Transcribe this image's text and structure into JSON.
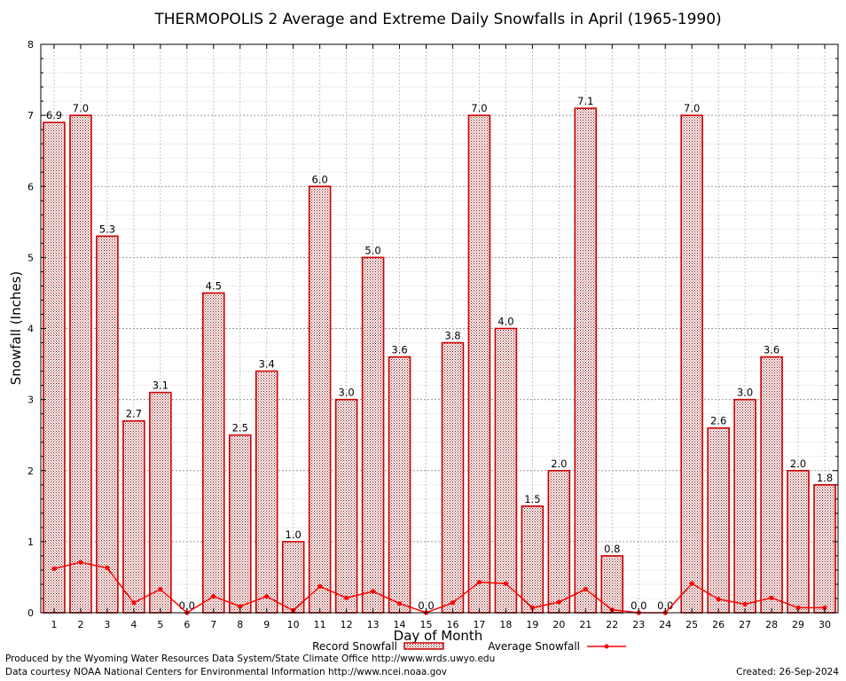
{
  "chart_data": {
    "type": "bar",
    "title": "THERMOPOLIS 2 Average and Extreme Daily Snowfalls in April (1965-1990)",
    "xlabel": "Day of Month",
    "ylabel": "Snowfall (Inches)",
    "ylim": [
      0,
      8
    ],
    "yticks": [
      "0",
      "1",
      "2",
      "3",
      "4",
      "5",
      "6",
      "7",
      "8"
    ],
    "grid": true,
    "categories": [
      "1",
      "2",
      "3",
      "4",
      "5",
      "6",
      "7",
      "8",
      "9",
      "10",
      "11",
      "12",
      "13",
      "14",
      "15",
      "16",
      "17",
      "18",
      "19",
      "20",
      "21",
      "22",
      "23",
      "24",
      "25",
      "26",
      "27",
      "28",
      "29",
      "30"
    ],
    "series": [
      {
        "name": "Record Snowfall",
        "kind": "bar",
        "color": "#cc0000",
        "values": [
          6.9,
          7.0,
          5.3,
          2.7,
          3.1,
          0.0,
          4.5,
          2.5,
          3.4,
          1.0,
          6.0,
          3.0,
          5.0,
          3.6,
          0.0,
          3.8,
          7.0,
          4.0,
          1.5,
          2.0,
          7.1,
          0.8,
          0.0,
          0.0,
          7.0,
          2.6,
          3.0,
          3.6,
          2.0,
          1.8
        ],
        "labels": [
          "6.9",
          "7.0",
          "5.3",
          "2.7",
          "3.1",
          "0.0",
          "4.5",
          "2.5",
          "3.4",
          "1.0",
          "6.0",
          "3.0",
          "5.0",
          "3.6",
          "0.0",
          "3.8",
          "7.0",
          "4.0",
          "1.5",
          "2.0",
          "7.1",
          "0.8",
          "0.0",
          "0.0",
          "7.0",
          "2.6",
          "3.0",
          "3.6",
          "2.0",
          "1.8"
        ]
      },
      {
        "name": "Average Snowfall",
        "kind": "line",
        "color": "#ff0000",
        "values": [
          0.62,
          0.71,
          0.63,
          0.14,
          0.33,
          0.0,
          0.23,
          0.09,
          0.23,
          0.03,
          0.37,
          0.21,
          0.3,
          0.13,
          0.0,
          0.14,
          0.43,
          0.41,
          0.07,
          0.15,
          0.33,
          0.04,
          0.0,
          0.0,
          0.41,
          0.19,
          0.12,
          0.21,
          0.07,
          0.07
        ]
      }
    ],
    "legend": {
      "position": "bottom-center"
    }
  },
  "footer": {
    "credit_line1": "Produced by the Wyoming Water Resources Data System/State Climate Office http://www.wrds.uwyo.edu",
    "credit_line2": "Data courtesy NOAA National Centers for Environmental Information http://www.ncei.noaa.gov",
    "created": "Created:  26-Sep-2024"
  }
}
